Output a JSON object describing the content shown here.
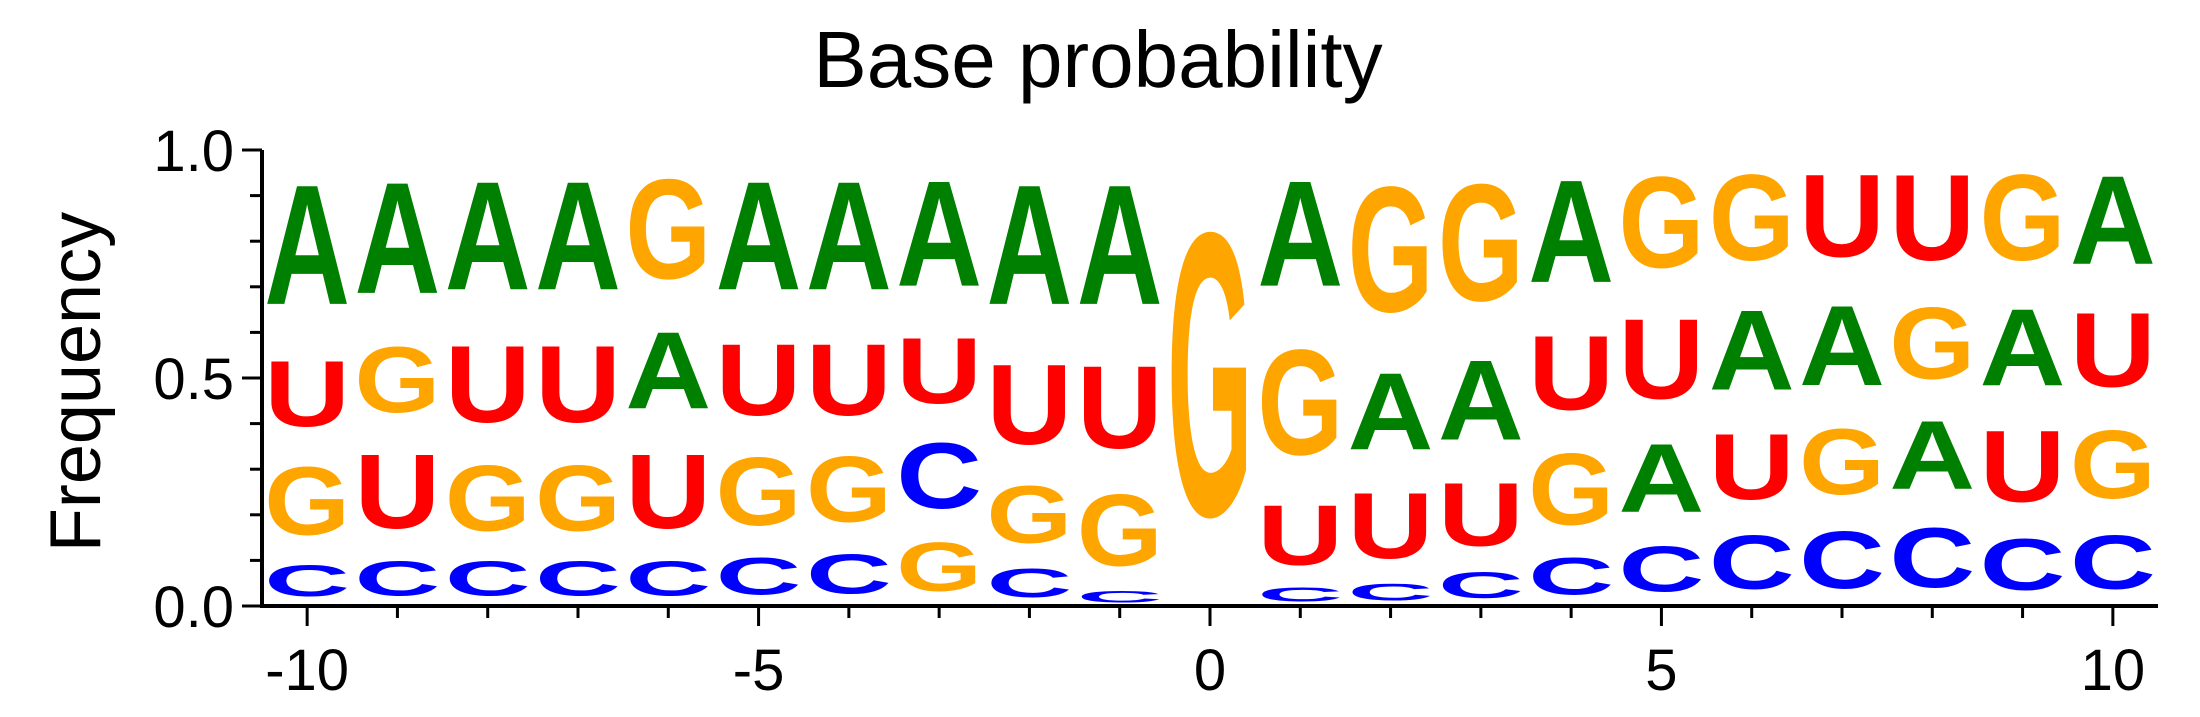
{
  "chart_data": {
    "type": "sequence-logo",
    "title": "Base probability",
    "ylabel": "Frequency",
    "xlabel": "",
    "xlim": [
      -10.5,
      10.5
    ],
    "ylim": [
      0,
      1
    ],
    "x_ticks": [
      -10,
      -5,
      0,
      5,
      10
    ],
    "x_tick_labels": [
      "-10",
      "-5",
      "0",
      "5",
      "10"
    ],
    "y_ticks": [
      0,
      0.5,
      1
    ],
    "y_tick_labels": [
      "0.0",
      "0.5",
      "1.0"
    ],
    "colors": {
      "A": "#008000",
      "C": "#0000ff",
      "G": "#ffa500",
      "U": "#ff0000"
    },
    "positions": [
      {
        "x": -10,
        "stack": [
          {
            "base": "C",
            "freq": 0.11
          },
          {
            "base": "G",
            "freq": 0.24
          },
          {
            "base": "U",
            "freq": 0.23
          },
          {
            "base": "A",
            "freq": 0.42
          }
        ]
      },
      {
        "x": -9,
        "stack": [
          {
            "base": "C",
            "freq": 0.12
          },
          {
            "base": "U",
            "freq": 0.26
          },
          {
            "base": "G",
            "freq": 0.23
          },
          {
            "base": "A",
            "freq": 0.39
          }
        ]
      },
      {
        "x": -8,
        "stack": [
          {
            "base": "C",
            "freq": 0.12
          },
          {
            "base": "G",
            "freq": 0.23
          },
          {
            "base": "U",
            "freq": 0.27
          },
          {
            "base": "A",
            "freq": 0.38
          }
        ]
      },
      {
        "x": -7,
        "stack": [
          {
            "base": "C",
            "freq": 0.12
          },
          {
            "base": "G",
            "freq": 0.23
          },
          {
            "base": "U",
            "freq": 0.27
          },
          {
            "base": "A",
            "freq": 0.38
          }
        ]
      },
      {
        "x": -6,
        "stack": [
          {
            "base": "C",
            "freq": 0.12
          },
          {
            "base": "U",
            "freq": 0.26
          },
          {
            "base": "A",
            "freq": 0.27
          },
          {
            "base": "G",
            "freq": 0.35
          }
        ]
      },
      {
        "x": -5,
        "stack": [
          {
            "base": "C",
            "freq": 0.13
          },
          {
            "base": "G",
            "freq": 0.24
          },
          {
            "base": "U",
            "freq": 0.25
          },
          {
            "base": "A",
            "freq": 0.38
          }
        ]
      },
      {
        "x": -4,
        "stack": [
          {
            "base": "C",
            "freq": 0.14
          },
          {
            "base": "G",
            "freq": 0.23
          },
          {
            "base": "U",
            "freq": 0.25
          },
          {
            "base": "A",
            "freq": 0.38
          }
        ]
      },
      {
        "x": -3,
        "stack": [
          {
            "base": "G",
            "freq": 0.17
          },
          {
            "base": "C",
            "freq": 0.23
          },
          {
            "base": "U",
            "freq": 0.23
          },
          {
            "base": "A",
            "freq": 0.37
          }
        ]
      },
      {
        "x": -2,
        "stack": [
          {
            "base": "C",
            "freq": 0.1
          },
          {
            "base": "G",
            "freq": 0.2
          },
          {
            "base": "U",
            "freq": 0.28
          },
          {
            "base": "A",
            "freq": 0.42
          }
        ]
      },
      {
        "x": -1,
        "stack": [
          {
            "base": "C",
            "freq": 0.04
          },
          {
            "base": "G",
            "freq": 0.25
          },
          {
            "base": "U",
            "freq": 0.29
          },
          {
            "base": "A",
            "freq": 0.42
          }
        ]
      },
      {
        "x": 0,
        "stack": [
          {
            "base": "C",
            "freq": 0.005
          },
          {
            "base": "G",
            "freq": 0.995
          }
        ]
      },
      {
        "x": 1,
        "stack": [
          {
            "base": "C",
            "freq": 0.05
          },
          {
            "base": "U",
            "freq": 0.21
          },
          {
            "base": "G",
            "freq": 0.37
          },
          {
            "base": "A",
            "freq": 0.37
          }
        ]
      },
      {
        "x": 2,
        "stack": [
          {
            "base": "C",
            "freq": 0.06
          },
          {
            "base": "U",
            "freq": 0.23
          },
          {
            "base": "A",
            "freq": 0.27
          },
          {
            "base": "G",
            "freq": 0.44
          }
        ]
      },
      {
        "x": 3,
        "stack": [
          {
            "base": "C",
            "freq": 0.09
          },
          {
            "base": "U",
            "freq": 0.22
          },
          {
            "base": "A",
            "freq": 0.28
          },
          {
            "base": "G",
            "freq": 0.41
          }
        ]
      },
      {
        "x": 4,
        "stack": [
          {
            "base": "C",
            "freq": 0.13
          },
          {
            "base": "G",
            "freq": 0.25
          },
          {
            "base": "U",
            "freq": 0.26
          },
          {
            "base": "A",
            "freq": 0.36
          }
        ]
      },
      {
        "x": 5,
        "stack": [
          {
            "base": "C",
            "freq": 0.16
          },
          {
            "base": "A",
            "freq": 0.24
          },
          {
            "base": "U",
            "freq": 0.28
          },
          {
            "base": "G",
            "freq": 0.32
          }
        ]
      },
      {
        "x": 6,
        "stack": [
          {
            "base": "C",
            "freq": 0.19
          },
          {
            "base": "U",
            "freq": 0.23
          },
          {
            "base": "A",
            "freq": 0.28
          },
          {
            "base": "G",
            "freq": 0.3
          }
        ]
      },
      {
        "x": 7,
        "stack": [
          {
            "base": "C",
            "freq": 0.2
          },
          {
            "base": "G",
            "freq": 0.23
          },
          {
            "base": "A",
            "freq": 0.28
          },
          {
            "base": "U",
            "freq": 0.29
          }
        ]
      },
      {
        "x": 8,
        "stack": [
          {
            "base": "C",
            "freq": 0.21
          },
          {
            "base": "A",
            "freq": 0.24
          },
          {
            "base": "G",
            "freq": 0.25
          },
          {
            "base": "U",
            "freq": 0.3
          }
        ]
      },
      {
        "x": 9,
        "stack": [
          {
            "base": "C",
            "freq": 0.18
          },
          {
            "base": "U",
            "freq": 0.25
          },
          {
            "base": "A",
            "freq": 0.27
          },
          {
            "base": "G",
            "freq": 0.3
          }
        ]
      },
      {
        "x": 10,
        "stack": [
          {
            "base": "C",
            "freq": 0.19
          },
          {
            "base": "G",
            "freq": 0.24
          },
          {
            "base": "U",
            "freq": 0.26
          },
          {
            "base": "A",
            "freq": 0.31
          }
        ]
      }
    ]
  }
}
